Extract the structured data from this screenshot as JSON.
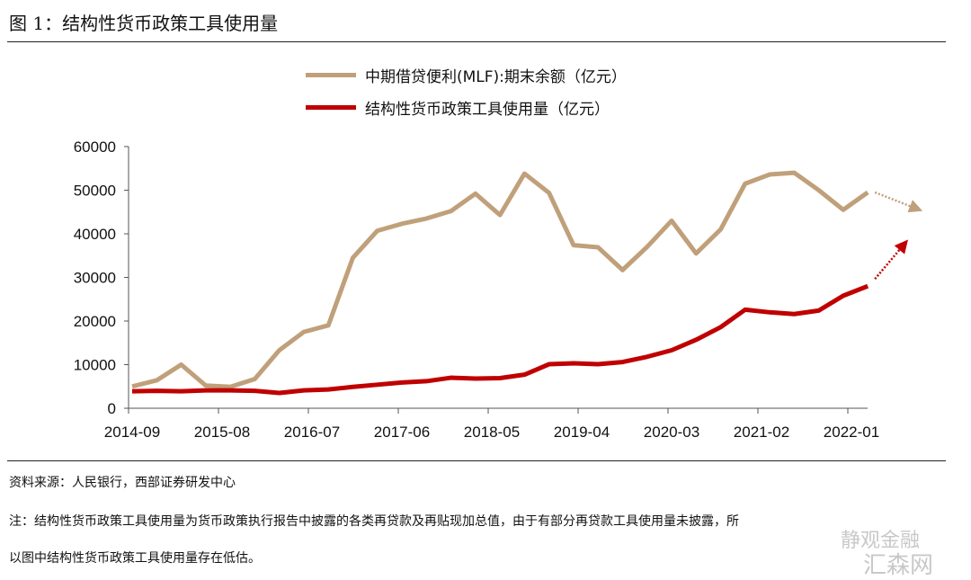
{
  "title": "图 1：结构性货币政策工具使用量",
  "source": "资料来源：人民银行，西部证券研发中心",
  "note_line1": "注：结构性货币政策工具使用量为货币政策执行报告中披露的各类再贷款及再贴现加总值，由于有部分再贷款工具使用量未披露，所",
  "note_line2": "以图中结构性货币政策工具使用量存在低估。",
  "watermark": [
    "静观金融",
    "汇森网"
  ],
  "chart_data": {
    "type": "line",
    "title": "图 1：结构性货币政策工具使用量",
    "xlabel": "",
    "ylabel": "",
    "ylim": [
      0,
      60000
    ],
    "yticks": [
      "0",
      "10000",
      "20000",
      "30000",
      "40000",
      "50000",
      "60000"
    ],
    "xticks": [
      "2014-09",
      "2015-08",
      "2016-07",
      "2017-06",
      "2018-05",
      "2019-04",
      "2020-03",
      "2021-02",
      "2022-01"
    ],
    "legend_position": "top-center",
    "grid": false,
    "x": [
      "2014-09",
      "2014-12",
      "2015-03",
      "2015-06",
      "2015-09",
      "2015-12",
      "2016-03",
      "2016-06",
      "2016-09",
      "2016-12",
      "2017-03",
      "2017-06",
      "2017-09",
      "2017-12",
      "2018-03",
      "2018-06",
      "2018-09",
      "2018-12",
      "2019-03",
      "2019-06",
      "2019-09",
      "2019-12",
      "2020-03",
      "2020-06",
      "2020-09",
      "2020-12",
      "2021-03",
      "2021-06",
      "2021-09",
      "2021-12",
      "2022-03"
    ],
    "series": [
      {
        "name": "中期借贷便利(MLF):期末余额（亿元）",
        "color": "#c0a07a",
        "values": [
          5000,
          6400,
          10000,
          5200,
          4900,
          6700,
          13300,
          17500,
          19000,
          34500,
          40700,
          42300,
          43500,
          45200,
          49200,
          44300,
          53800,
          49400,
          37400,
          36900,
          31700,
          37000,
          43000,
          35500,
          41000,
          51500,
          53600,
          54000,
          50000,
          45500,
          49500
        ],
        "trend": "down"
      },
      {
        "name": "结构性货币政策工具使用量（亿元）",
        "color": "#c00000",
        "values": [
          3900,
          4000,
          3900,
          4100,
          4100,
          4000,
          3500,
          4100,
          4300,
          4900,
          5400,
          5900,
          6200,
          7000,
          6800,
          6900,
          7700,
          10100,
          10300,
          10100,
          10600,
          11800,
          13300,
          15700,
          18600,
          22600,
          22000,
          21600,
          22400,
          25800,
          28000
        ],
        "trend": "up"
      }
    ]
  }
}
